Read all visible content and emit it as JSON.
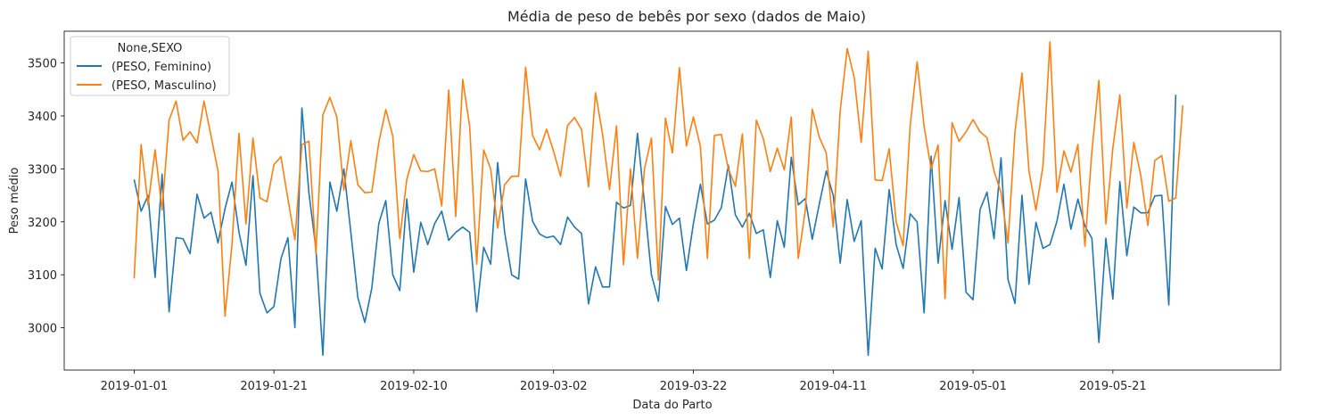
{
  "chart_data": {
    "type": "line",
    "title": "Média de peso de bebês por sexo (dados de Maio)",
    "xlabel": "Data do Parto",
    "ylabel": "Peso médio",
    "xlim": [
      "2018-12-22",
      "2019-06-14"
    ],
    "ylim": [
      2920,
      3560
    ],
    "x_ticks": [
      "2019-01-01",
      "2019-01-21",
      "2019-02-10",
      "2019-03-02",
      "2019-03-22",
      "2019-04-11",
      "2019-05-01",
      "2019-05-21"
    ],
    "y_ticks": [
      3000,
      3100,
      3200,
      3300,
      3400,
      3500
    ],
    "grid": false,
    "legend": {
      "title": "None,SEXO",
      "position": "top-left"
    },
    "x_start": "2019-01-01",
    "x_end": "2019-05-31",
    "series": [
      {
        "name": "(PESO, Feminino)",
        "color": "#1f77b4",
        "values": [
          3280,
          3220,
          3250,
          3095,
          3290,
          3030,
          3170,
          3168,
          3140,
          3252,
          3207,
          3218,
          3160,
          3225,
          3275,
          3180,
          3118,
          3287,
          3065,
          3028,
          3040,
          3130,
          3170,
          3000,
          3415,
          3255,
          3150,
          2948,
          3275,
          3220,
          3300,
          3180,
          3057,
          3010,
          3075,
          3197,
          3240,
          3100,
          3070,
          3243,
          3105,
          3199,
          3157,
          3197,
          3220,
          3165,
          3180,
          3190,
          3180,
          3030,
          3152,
          3120,
          3312,
          3180,
          3100,
          3092,
          3281,
          3201,
          3177,
          3170,
          3173,
          3157,
          3209,
          3190,
          3178,
          3045,
          3115,
          3077,
          3077,
          3237,
          3226,
          3231,
          3367,
          3235,
          3100,
          3050,
          3229,
          3195,
          3207,
          3108,
          3197,
          3271,
          3196,
          3203,
          3227,
          3307,
          3213,
          3190,
          3216,
          3178,
          3185,
          3095,
          3202,
          3152,
          3322,
          3232,
          3244,
          3167,
          3233,
          3296,
          3250,
          3122,
          3242,
          3163,
          3202,
          2948,
          3150,
          3111,
          3261,
          3157,
          3112,
          3215,
          3200,
          3028,
          3324,
          3122,
          3240,
          3148,
          3246,
          3067,
          3053,
          3223,
          3256,
          3168,
          3321,
          3091,
          3046,
          3250,
          3082,
          3199,
          3150,
          3157,
          3201,
          3271,
          3186,
          3243,
          3192,
          3169,
          2972,
          3169,
          3054,
          3276,
          3136,
          3228,
          3217,
          3217,
          3249,
          3250,
          3043,
          3440
        ]
      },
      {
        "name": "(PESO, Masculino)",
        "color": "#ff7f0e",
        "values": [
          3093,
          3346,
          3232,
          3336,
          3222,
          3392,
          3428,
          3354,
          3370,
          3349,
          3428,
          3362,
          3296,
          3022,
          3158,
          3367,
          3196,
          3358,
          3245,
          3238,
          3308,
          3323,
          3243,
          3166,
          3346,
          3352,
          3140,
          3402,
          3435,
          3398,
          3260,
          3353,
          3270,
          3255,
          3256,
          3350,
          3412,
          3362,
          3168,
          3280,
          3327,
          3296,
          3295,
          3300,
          3230,
          3449,
          3210,
          3469,
          3380,
          3120,
          3336,
          3300,
          3188,
          3270,
          3286,
          3286,
          3492,
          3363,
          3336,
          3375,
          3333,
          3286,
          3382,
          3397,
          3374,
          3266,
          3444,
          3366,
          3261,
          3381,
          3119,
          3300,
          3131,
          3300,
          3358,
          3090,
          3396,
          3330,
          3491,
          3343,
          3398,
          3342,
          3131,
          3363,
          3365,
          3300,
          3267,
          3366,
          3131,
          3392,
          3357,
          3295,
          3339,
          3298,
          3398,
          3131,
          3221,
          3413,
          3360,
          3330,
          3190,
          3410,
          3527,
          3473,
          3350,
          3522,
          3279,
          3278,
          3338,
          3200,
          3155,
          3380,
          3502,
          3380,
          3300,
          3345,
          3055,
          3387,
          3352,
          3370,
          3393,
          3370,
          3359,
          3296,
          3255,
          3160,
          3370,
          3481,
          3296,
          3222,
          3305,
          3540,
          3256,
          3334,
          3294,
          3346,
          3154,
          3333,
          3467,
          3196,
          3340,
          3440,
          3226,
          3350,
          3287,
          3193,
          3316,
          3325,
          3239,
          3245,
          3420
        ]
      }
    ]
  }
}
